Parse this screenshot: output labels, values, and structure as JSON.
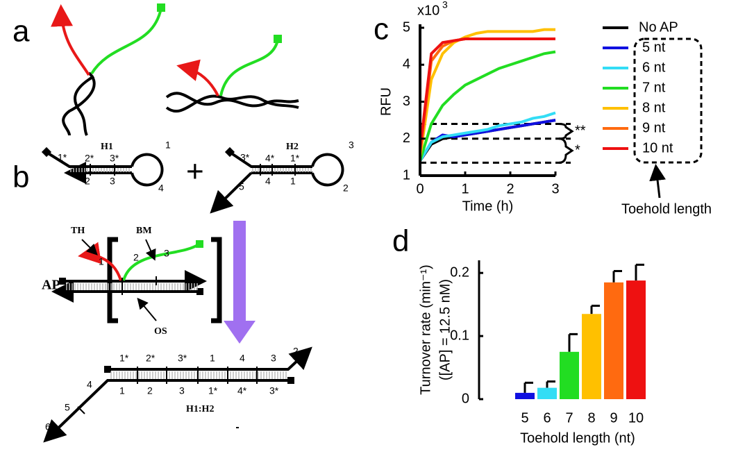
{
  "panel_letters": [
    "a",
    "b",
    "c",
    "d"
  ],
  "diagram_b": {
    "labels": [
      "H1",
      "1*",
      "2*",
      "3*",
      "1",
      "2",
      "3",
      "4",
      "+",
      "H2",
      "3*",
      "4*",
      "1*",
      "3",
      "2",
      "5",
      "4",
      "1",
      "6",
      "AP",
      "TH",
      "BM",
      "1",
      "2",
      "3",
      "OS",
      "1*",
      "2*",
      "3*",
      "1",
      "4",
      "3",
      "2",
      "1",
      "2",
      "3",
      "1*",
      "4*",
      "3*",
      "4",
      "5",
      "6",
      "H1:H2"
    ]
  },
  "chart_data": [
    {
      "type": "line",
      "ylabel": "RFU",
      "xlabel": "Time (h)",
      "y_scale_label": "x10",
      "y_scale_exponent": "3",
      "x": [
        0,
        0.25,
        0.5,
        0.75,
        1,
        1.25,
        1.5,
        1.75,
        2,
        2.25,
        2.5,
        2.75,
        3
      ],
      "xlim": [
        0,
        3
      ],
      "xticks": [
        0,
        1,
        2,
        3
      ],
      "ylim": [
        1,
        5
      ],
      "yticks": [
        1,
        2,
        3,
        4,
        5
      ],
      "reference_lines": [
        2.4,
        2.0,
        1.35
      ],
      "brackets": [
        "**",
        "*"
      ],
      "legend_group_label": "Toehold length",
      "series": [
        {
          "name": "No AP",
          "color": "#000000",
          "values": [
            1.4,
            1.85,
            2.0,
            2.05,
            2.1,
            2.15,
            2.2,
            2.25,
            2.3,
            2.35,
            2.4,
            2.45,
            2.5
          ]
        },
        {
          "name": "5 nt",
          "color": "#1010e0",
          "values": [
            1.4,
            1.9,
            2.1,
            2.05,
            2.1,
            2.15,
            2.2,
            2.25,
            2.3,
            2.35,
            2.4,
            2.45,
            2.5
          ]
        },
        {
          "name": "6 nt",
          "color": "#33ddf5",
          "values": [
            1.4,
            1.9,
            2.05,
            2.1,
            2.15,
            2.2,
            2.25,
            2.35,
            2.4,
            2.45,
            2.55,
            2.6,
            2.7
          ]
        },
        {
          "name": "7 nt",
          "color": "#22dd22",
          "values": [
            1.4,
            2.4,
            2.9,
            3.2,
            3.45,
            3.6,
            3.75,
            3.9,
            4.0,
            4.1,
            4.2,
            4.3,
            4.35
          ]
        },
        {
          "name": "8 nt",
          "color": "#ffc000",
          "values": [
            1.5,
            3.6,
            4.3,
            4.6,
            4.75,
            4.85,
            4.9,
            4.9,
            4.9,
            4.9,
            4.9,
            4.95,
            4.95
          ]
        },
        {
          "name": "9 nt",
          "color": "#ff6a10",
          "values": [
            1.6,
            4.1,
            4.5,
            4.65,
            4.7,
            4.7,
            4.7,
            4.7,
            4.7,
            4.7,
            4.7,
            4.7,
            4.7
          ]
        },
        {
          "name": "10 nt",
          "color": "#ee1111",
          "values": [
            1.7,
            4.3,
            4.6,
            4.65,
            4.7,
            4.7,
            4.7,
            4.7,
            4.7,
            4.7,
            4.7,
            4.7,
            4.7
          ]
        }
      ]
    },
    {
      "type": "bar",
      "ylabel": "Turnover rate (min⁻¹)",
      "ylabel_note": "([AP] = 12.5 nM)",
      "xlabel": "Toehold length (nt)",
      "categories": [
        "5",
        "6",
        "7",
        "8",
        "9",
        "10"
      ],
      "values": [
        0.01,
        0.018,
        0.075,
        0.135,
        0.185,
        0.188
      ],
      "errors": [
        0.016,
        0.01,
        0.028,
        0.013,
        0.018,
        0.025
      ],
      "colors": [
        "#1010e0",
        "#33ddf5",
        "#22dd22",
        "#ffc000",
        "#ff6a10",
        "#ee1111"
      ],
      "ylim": [
        0,
        0.22
      ],
      "yticks": [
        0,
        0.1,
        0.2
      ]
    }
  ]
}
